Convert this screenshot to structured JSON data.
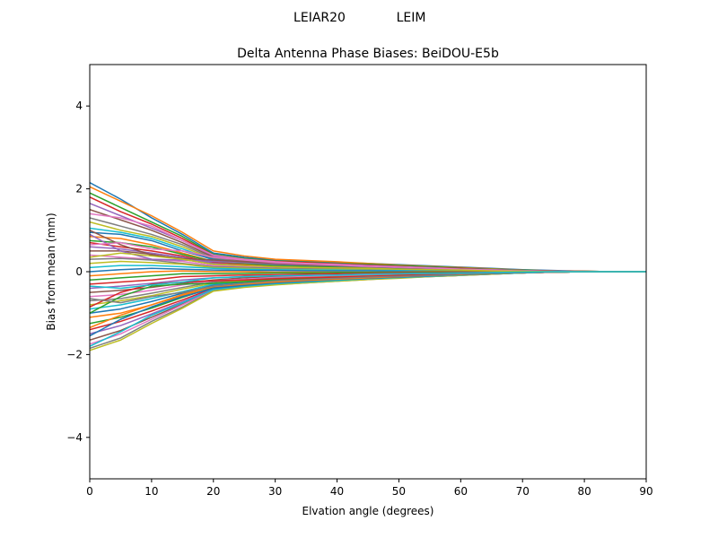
{
  "figure": {
    "suptitle_left": "LEIAR20",
    "suptitle_right": "LEIM"
  },
  "chart_data": {
    "type": "line",
    "title": "Delta Antenna Phase Biases: BeiDOU-E5b",
    "xlabel": "Elvation angle (degrees)",
    "ylabel": "Bias from mean (mm)",
    "xlim": [
      0,
      90
    ],
    "ylim": [
      -5,
      5
    ],
    "xticks": [
      0,
      10,
      20,
      30,
      40,
      50,
      60,
      70,
      80,
      90
    ],
    "yticks": [
      -4,
      -2,
      0,
      2,
      4
    ],
    "ytick_labels": [
      "−4",
      "−2",
      "0",
      "2",
      "4"
    ],
    "grid": false,
    "legend": "none",
    "x": [
      0,
      5,
      10,
      15,
      20,
      25,
      30,
      35,
      40,
      45,
      50,
      55,
      60,
      65,
      70,
      75,
      80,
      85,
      90
    ],
    "colors": [
      "#1f77b4",
      "#ff7f0e",
      "#2ca02c",
      "#d62728",
      "#9467bd",
      "#8c564b",
      "#e377c2",
      "#7f7f7f",
      "#bcbd22",
      "#17becf"
    ],
    "series": [
      {
        "values": [
          2.15,
          1.75,
          1.3,
          0.9,
          0.45,
          0.35,
          0.28,
          0.25,
          0.22,
          0.2,
          0.17,
          0.14,
          0.11,
          0.08,
          0.05,
          0.03,
          0.01,
          0.0,
          0.0
        ]
      },
      {
        "values": [
          2.05,
          1.7,
          1.35,
          0.95,
          0.5,
          0.38,
          0.3,
          0.27,
          0.24,
          0.2,
          0.16,
          0.13,
          0.1,
          0.07,
          0.04,
          0.02,
          0.01,
          0.0,
          0.0
        ]
      },
      {
        "values": [
          1.9,
          1.55,
          1.2,
          0.85,
          0.42,
          0.32,
          0.26,
          0.23,
          0.2,
          0.18,
          0.15,
          0.12,
          0.09,
          0.06,
          0.04,
          0.02,
          0.01,
          0.0,
          0.0
        ]
      },
      {
        "values": [
          1.8,
          1.45,
          1.15,
          0.8,
          0.4,
          0.3,
          0.25,
          0.22,
          0.19,
          0.16,
          0.13,
          0.1,
          0.08,
          0.05,
          0.03,
          0.02,
          0.01,
          0.0,
          0.0
        ]
      },
      {
        "values": [
          1.65,
          1.35,
          1.05,
          0.75,
          0.38,
          0.28,
          0.22,
          0.2,
          0.18,
          0.15,
          0.12,
          0.1,
          0.07,
          0.05,
          0.03,
          0.01,
          0.0,
          0.0,
          0.0
        ]
      },
      {
        "values": [
          1.5,
          1.25,
          1.0,
          0.7,
          0.35,
          0.26,
          0.2,
          0.18,
          0.16,
          0.14,
          0.11,
          0.09,
          0.07,
          0.04,
          0.02,
          0.01,
          0.0,
          0.0,
          0.0
        ]
      },
      {
        "values": [
          1.4,
          1.3,
          1.1,
          0.75,
          0.4,
          0.3,
          0.24,
          0.2,
          0.17,
          0.14,
          0.12,
          0.09,
          0.06,
          0.04,
          0.02,
          0.01,
          0.0,
          0.0,
          0.0
        ]
      },
      {
        "values": [
          1.3,
          1.1,
          0.9,
          0.65,
          0.32,
          0.24,
          0.19,
          0.17,
          0.15,
          0.12,
          0.1,
          0.08,
          0.06,
          0.04,
          0.02,
          0.01,
          0.0,
          0.0,
          0.0
        ]
      },
      {
        "values": [
          1.2,
          1.0,
          0.85,
          0.6,
          0.3,
          0.22,
          0.18,
          0.16,
          0.14,
          0.12,
          0.1,
          0.08,
          0.05,
          0.03,
          0.02,
          0.01,
          0.0,
          0.0,
          0.0
        ]
      },
      {
        "values": [
          1.05,
          0.95,
          0.8,
          0.55,
          0.28,
          0.2,
          0.16,
          0.14,
          0.12,
          0.1,
          0.08,
          0.06,
          0.05,
          0.03,
          0.02,
          0.01,
          0.0,
          0.0,
          0.0
        ]
      },
      {
        "values": [
          0.95,
          0.9,
          0.75,
          0.5,
          0.3,
          0.22,
          0.17,
          0.15,
          0.13,
          0.11,
          0.09,
          0.07,
          0.05,
          0.03,
          0.01,
          0.0,
          0.0,
          0.0,
          0.0
        ]
      },
      {
        "values": [
          0.85,
          0.8,
          0.65,
          0.45,
          0.25,
          0.18,
          0.14,
          0.12,
          0.1,
          0.09,
          0.07,
          0.06,
          0.04,
          0.03,
          0.01,
          0.0,
          0.0,
          0.0,
          0.0
        ]
      },
      {
        "values": [
          0.75,
          0.7,
          0.6,
          0.42,
          0.25,
          0.2,
          0.15,
          0.13,
          0.11,
          0.09,
          0.08,
          0.06,
          0.04,
          0.02,
          0.01,
          0.0,
          0.0,
          0.0,
          0.0
        ]
      },
      {
        "values": [
          0.7,
          0.6,
          0.5,
          0.38,
          0.22,
          0.16,
          0.12,
          0.1,
          0.09,
          0.08,
          0.06,
          0.05,
          0.04,
          0.02,
          0.01,
          0.0,
          0.0,
          0.0,
          0.0
        ]
      },
      {
        "values": [
          0.6,
          0.55,
          0.45,
          0.35,
          0.2,
          0.15,
          0.12,
          0.1,
          0.08,
          0.07,
          0.06,
          0.04,
          0.03,
          0.02,
          0.01,
          0.0,
          0.0,
          0.0,
          0.0
        ]
      },
      {
        "values": [
          0.5,
          0.5,
          0.42,
          0.3,
          0.18,
          0.14,
          0.11,
          0.09,
          0.08,
          0.06,
          0.05,
          0.04,
          0.03,
          0.02,
          0.01,
          0.0,
          0.0,
          0.0,
          0.0
        ]
      },
      {
        "values": [
          0.4,
          0.35,
          0.3,
          0.25,
          0.15,
          0.12,
          0.09,
          0.08,
          0.07,
          0.06,
          0.05,
          0.04,
          0.03,
          0.02,
          0.01,
          0.0,
          0.0,
          0.0,
          0.0
        ]
      },
      {
        "values": [
          0.3,
          0.32,
          0.28,
          0.2,
          0.12,
          0.1,
          0.08,
          0.07,
          0.06,
          0.05,
          0.04,
          0.03,
          0.02,
          0.01,
          0.01,
          0.0,
          0.0,
          0.0,
          0.0
        ]
      },
      {
        "values": [
          0.2,
          0.25,
          0.22,
          0.18,
          0.1,
          0.08,
          0.06,
          0.05,
          0.05,
          0.04,
          0.03,
          0.03,
          0.02,
          0.01,
          0.0,
          0.0,
          0.0,
          0.0,
          0.0
        ]
      },
      {
        "values": [
          0.1,
          0.15,
          0.15,
          0.12,
          0.08,
          0.06,
          0.05,
          0.04,
          0.04,
          0.03,
          0.03,
          0.02,
          0.02,
          0.01,
          0.0,
          0.0,
          0.0,
          0.0,
          0.0
        ]
      },
      {
        "values": [
          0.0,
          0.05,
          0.08,
          0.06,
          0.04,
          0.03,
          0.03,
          0.02,
          0.02,
          0.02,
          0.01,
          0.01,
          0.01,
          0.0,
          0.0,
          0.0,
          0.0,
          0.0,
          0.0
        ]
      },
      {
        "values": [
          -0.1,
          -0.05,
          0.0,
          0.02,
          0.0,
          0.0,
          -0.01,
          -0.01,
          -0.01,
          -0.01,
          -0.01,
          0.0,
          0.0,
          0.0,
          0.0,
          0.0,
          0.0,
          0.0,
          0.0
        ]
      },
      {
        "values": [
          -0.2,
          -0.15,
          -0.1,
          -0.05,
          -0.05,
          -0.04,
          -0.03,
          -0.03,
          -0.02,
          -0.02,
          -0.02,
          -0.01,
          -0.01,
          -0.01,
          0.0,
          0.0,
          0.0,
          0.0,
          0.0
        ]
      },
      {
        "values": [
          -0.3,
          -0.25,
          -0.2,
          -0.12,
          -0.1,
          -0.08,
          -0.07,
          -0.06,
          -0.05,
          -0.04,
          -0.03,
          -0.03,
          -0.02,
          -0.01,
          -0.01,
          0.0,
          0.0,
          0.0,
          0.0
        ]
      },
      {
        "values": [
          -0.4,
          -0.35,
          -0.28,
          -0.2,
          -0.15,
          -0.12,
          -0.1,
          -0.09,
          -0.08,
          -0.06,
          -0.05,
          -0.04,
          -0.03,
          -0.02,
          -0.01,
          0.0,
          0.0,
          0.0,
          0.0
        ]
      },
      {
        "values": [
          -0.5,
          -0.45,
          -0.38,
          -0.28,
          -0.2,
          -0.15,
          -0.12,
          -0.1,
          -0.09,
          -0.07,
          -0.06,
          -0.05,
          -0.04,
          -0.02,
          -0.01,
          0.0,
          0.0,
          0.0,
          0.0
        ]
      },
      {
        "values": [
          -0.6,
          -0.55,
          -0.45,
          -0.32,
          -0.22,
          -0.18,
          -0.14,
          -0.12,
          -0.1,
          -0.08,
          -0.07,
          -0.05,
          -0.04,
          -0.03,
          -0.01,
          0.0,
          0.0,
          0.0,
          0.0
        ]
      },
      {
        "values": [
          -0.7,
          -0.65,
          -0.52,
          -0.38,
          -0.25,
          -0.2,
          -0.16,
          -0.14,
          -0.12,
          -0.1,
          -0.08,
          -0.06,
          -0.05,
          -0.03,
          -0.02,
          -0.01,
          0.0,
          0.0,
          0.0
        ]
      },
      {
        "values": [
          -0.8,
          -0.7,
          -0.58,
          -0.42,
          -0.28,
          -0.22,
          -0.18,
          -0.15,
          -0.13,
          -0.11,
          -0.09,
          -0.07,
          -0.05,
          -0.03,
          -0.02,
          -0.01,
          0.0,
          0.0,
          0.0
        ]
      },
      {
        "values": [
          -0.9,
          -0.8,
          -0.65,
          -0.48,
          -0.3,
          -0.25,
          -0.2,
          -0.17,
          -0.14,
          -0.12,
          -0.1,
          -0.08,
          -0.06,
          -0.04,
          -0.02,
          -0.01,
          0.0,
          0.0,
          0.0
        ]
      },
      {
        "values": [
          -1.0,
          -0.9,
          -0.72,
          -0.52,
          -0.33,
          -0.27,
          -0.22,
          -0.18,
          -0.15,
          -0.13,
          -0.11,
          -0.09,
          -0.06,
          -0.04,
          -0.02,
          -0.01,
          0.0,
          0.0,
          0.0
        ]
      },
      {
        "values": [
          -1.1,
          -1.0,
          -0.8,
          -0.58,
          -0.35,
          -0.28,
          -0.23,
          -0.2,
          -0.17,
          -0.14,
          -0.12,
          -0.09,
          -0.07,
          -0.05,
          -0.03,
          -0.01,
          0.0,
          0.0,
          0.0
        ]
      },
      {
        "values": [
          -1.25,
          -1.1,
          -0.88,
          -0.62,
          -0.38,
          -0.3,
          -0.25,
          -0.21,
          -0.18,
          -0.15,
          -0.12,
          -0.1,
          -0.07,
          -0.05,
          -0.03,
          -0.01,
          0.0,
          0.0,
          0.0
        ]
      },
      {
        "values": [
          -1.4,
          -1.2,
          -0.95,
          -0.68,
          -0.4,
          -0.32,
          -0.26,
          -0.22,
          -0.19,
          -0.16,
          -0.13,
          -0.1,
          -0.08,
          -0.05,
          -0.03,
          -0.01,
          0.0,
          0.0,
          0.0
        ]
      },
      {
        "values": [
          -1.5,
          -1.3,
          -1.02,
          -0.72,
          -0.42,
          -0.34,
          -0.28,
          -0.24,
          -0.2,
          -0.17,
          -0.14,
          -0.11,
          -0.08,
          -0.05,
          -0.03,
          -0.01,
          0.0,
          0.0,
          0.0
        ]
      },
      {
        "values": [
          -1.65,
          -1.42,
          -1.1,
          -0.78,
          -0.44,
          -0.35,
          -0.29,
          -0.25,
          -0.21,
          -0.18,
          -0.14,
          -0.11,
          -0.08,
          -0.06,
          -0.03,
          -0.01,
          0.0,
          0.0,
          0.0
        ]
      },
      {
        "values": [
          -1.75,
          -1.5,
          -1.15,
          -0.8,
          -0.45,
          -0.36,
          -0.3,
          -0.26,
          -0.22,
          -0.18,
          -0.15,
          -0.12,
          -0.09,
          -0.06,
          -0.03,
          -0.01,
          0.0,
          0.0,
          0.0
        ]
      },
      {
        "values": [
          -1.85,
          -1.6,
          -1.2,
          -0.85,
          -0.46,
          -0.37,
          -0.31,
          -0.27,
          -0.23,
          -0.19,
          -0.15,
          -0.12,
          -0.09,
          -0.06,
          -0.03,
          -0.01,
          0.0,
          0.0,
          0.0
        ]
      },
      {
        "values": [
          -1.9,
          -1.65,
          -1.25,
          -0.88,
          -0.47,
          -0.38,
          -0.32,
          -0.27,
          -0.23,
          -0.19,
          -0.16,
          -0.12,
          -0.09,
          -0.06,
          -0.03,
          -0.01,
          0.0,
          0.0,
          0.0
        ]
      },
      {
        "values": [
          -1.8,
          -1.45,
          -1.05,
          -0.75,
          -0.43,
          -0.35,
          -0.29,
          -0.25,
          -0.21,
          -0.17,
          -0.14,
          -0.11,
          -0.08,
          -0.05,
          -0.03,
          -0.01,
          0.0,
          0.0,
          0.0
        ]
      },
      {
        "values": [
          -1.55,
          -1.15,
          -0.85,
          -0.6,
          -0.4,
          -0.33,
          -0.27,
          -0.23,
          -0.19,
          -0.16,
          -0.13,
          -0.1,
          -0.07,
          -0.05,
          -0.02,
          -0.01,
          0.0,
          0.0,
          0.0
        ]
      },
      {
        "values": [
          -1.35,
          -1.05,
          -0.8,
          -0.55,
          -0.36,
          -0.3,
          -0.25,
          -0.21,
          -0.18,
          -0.15,
          -0.12,
          -0.09,
          -0.07,
          -0.04,
          -0.02,
          -0.01,
          0.0,
          0.0,
          0.0
        ]
      },
      {
        "values": [
          -1.0,
          -0.6,
          -0.35,
          -0.3,
          -0.28,
          -0.24,
          -0.2,
          -0.17,
          -0.15,
          -0.12,
          -0.1,
          -0.08,
          -0.06,
          -0.04,
          -0.02,
          -0.01,
          0.0,
          0.0,
          0.0
        ]
      },
      {
        "values": [
          -0.85,
          -0.5,
          -0.3,
          -0.25,
          -0.22,
          -0.2,
          -0.17,
          -0.15,
          -0.13,
          -0.11,
          -0.09,
          -0.07,
          -0.05,
          -0.03,
          -0.02,
          -0.01,
          0.0,
          0.0,
          0.0
        ]
      },
      {
        "values": [
          0.9,
          0.5,
          0.3,
          0.28,
          0.25,
          0.22,
          0.18,
          0.16,
          0.14,
          0.12,
          0.1,
          0.08,
          0.06,
          0.04,
          0.02,
          0.01,
          0.0,
          0.0,
          0.0
        ]
      },
      {
        "values": [
          1.0,
          0.65,
          0.4,
          0.32,
          0.28,
          0.24,
          0.2,
          0.17,
          0.15,
          0.13,
          0.11,
          0.09,
          0.06,
          0.04,
          0.02,
          0.01,
          0.0,
          0.0,
          0.0
        ]
      },
      {
        "values": [
          0.65,
          0.7,
          0.55,
          0.5,
          0.35,
          0.28,
          0.22,
          0.19,
          0.16,
          0.13,
          0.11,
          0.09,
          0.06,
          0.04,
          0.02,
          0.01,
          0.0,
          0.0,
          0.0
        ]
      },
      {
        "values": [
          -0.65,
          -0.75,
          -0.6,
          -0.5,
          -0.35,
          -0.28,
          -0.22,
          -0.19,
          -0.16,
          -0.13,
          -0.11,
          -0.09,
          -0.06,
          -0.04,
          -0.02,
          -0.01,
          0.0,
          0.0,
          0.0
        ]
      },
      {
        "values": [
          0.35,
          0.45,
          0.38,
          0.3,
          0.18,
          0.15,
          0.12,
          0.1,
          0.09,
          0.08,
          0.06,
          0.05,
          0.04,
          0.02,
          0.01,
          0.0,
          0.0,
          0.0,
          0.0
        ]
      },
      {
        "values": [
          -0.35,
          -0.4,
          -0.32,
          -0.25,
          -0.15,
          -0.12,
          -0.1,
          -0.09,
          -0.08,
          -0.06,
          -0.05,
          -0.04,
          -0.03,
          -0.02,
          -0.01,
          0.0,
          0.0,
          0.0,
          0.0
        ]
      }
    ]
  }
}
